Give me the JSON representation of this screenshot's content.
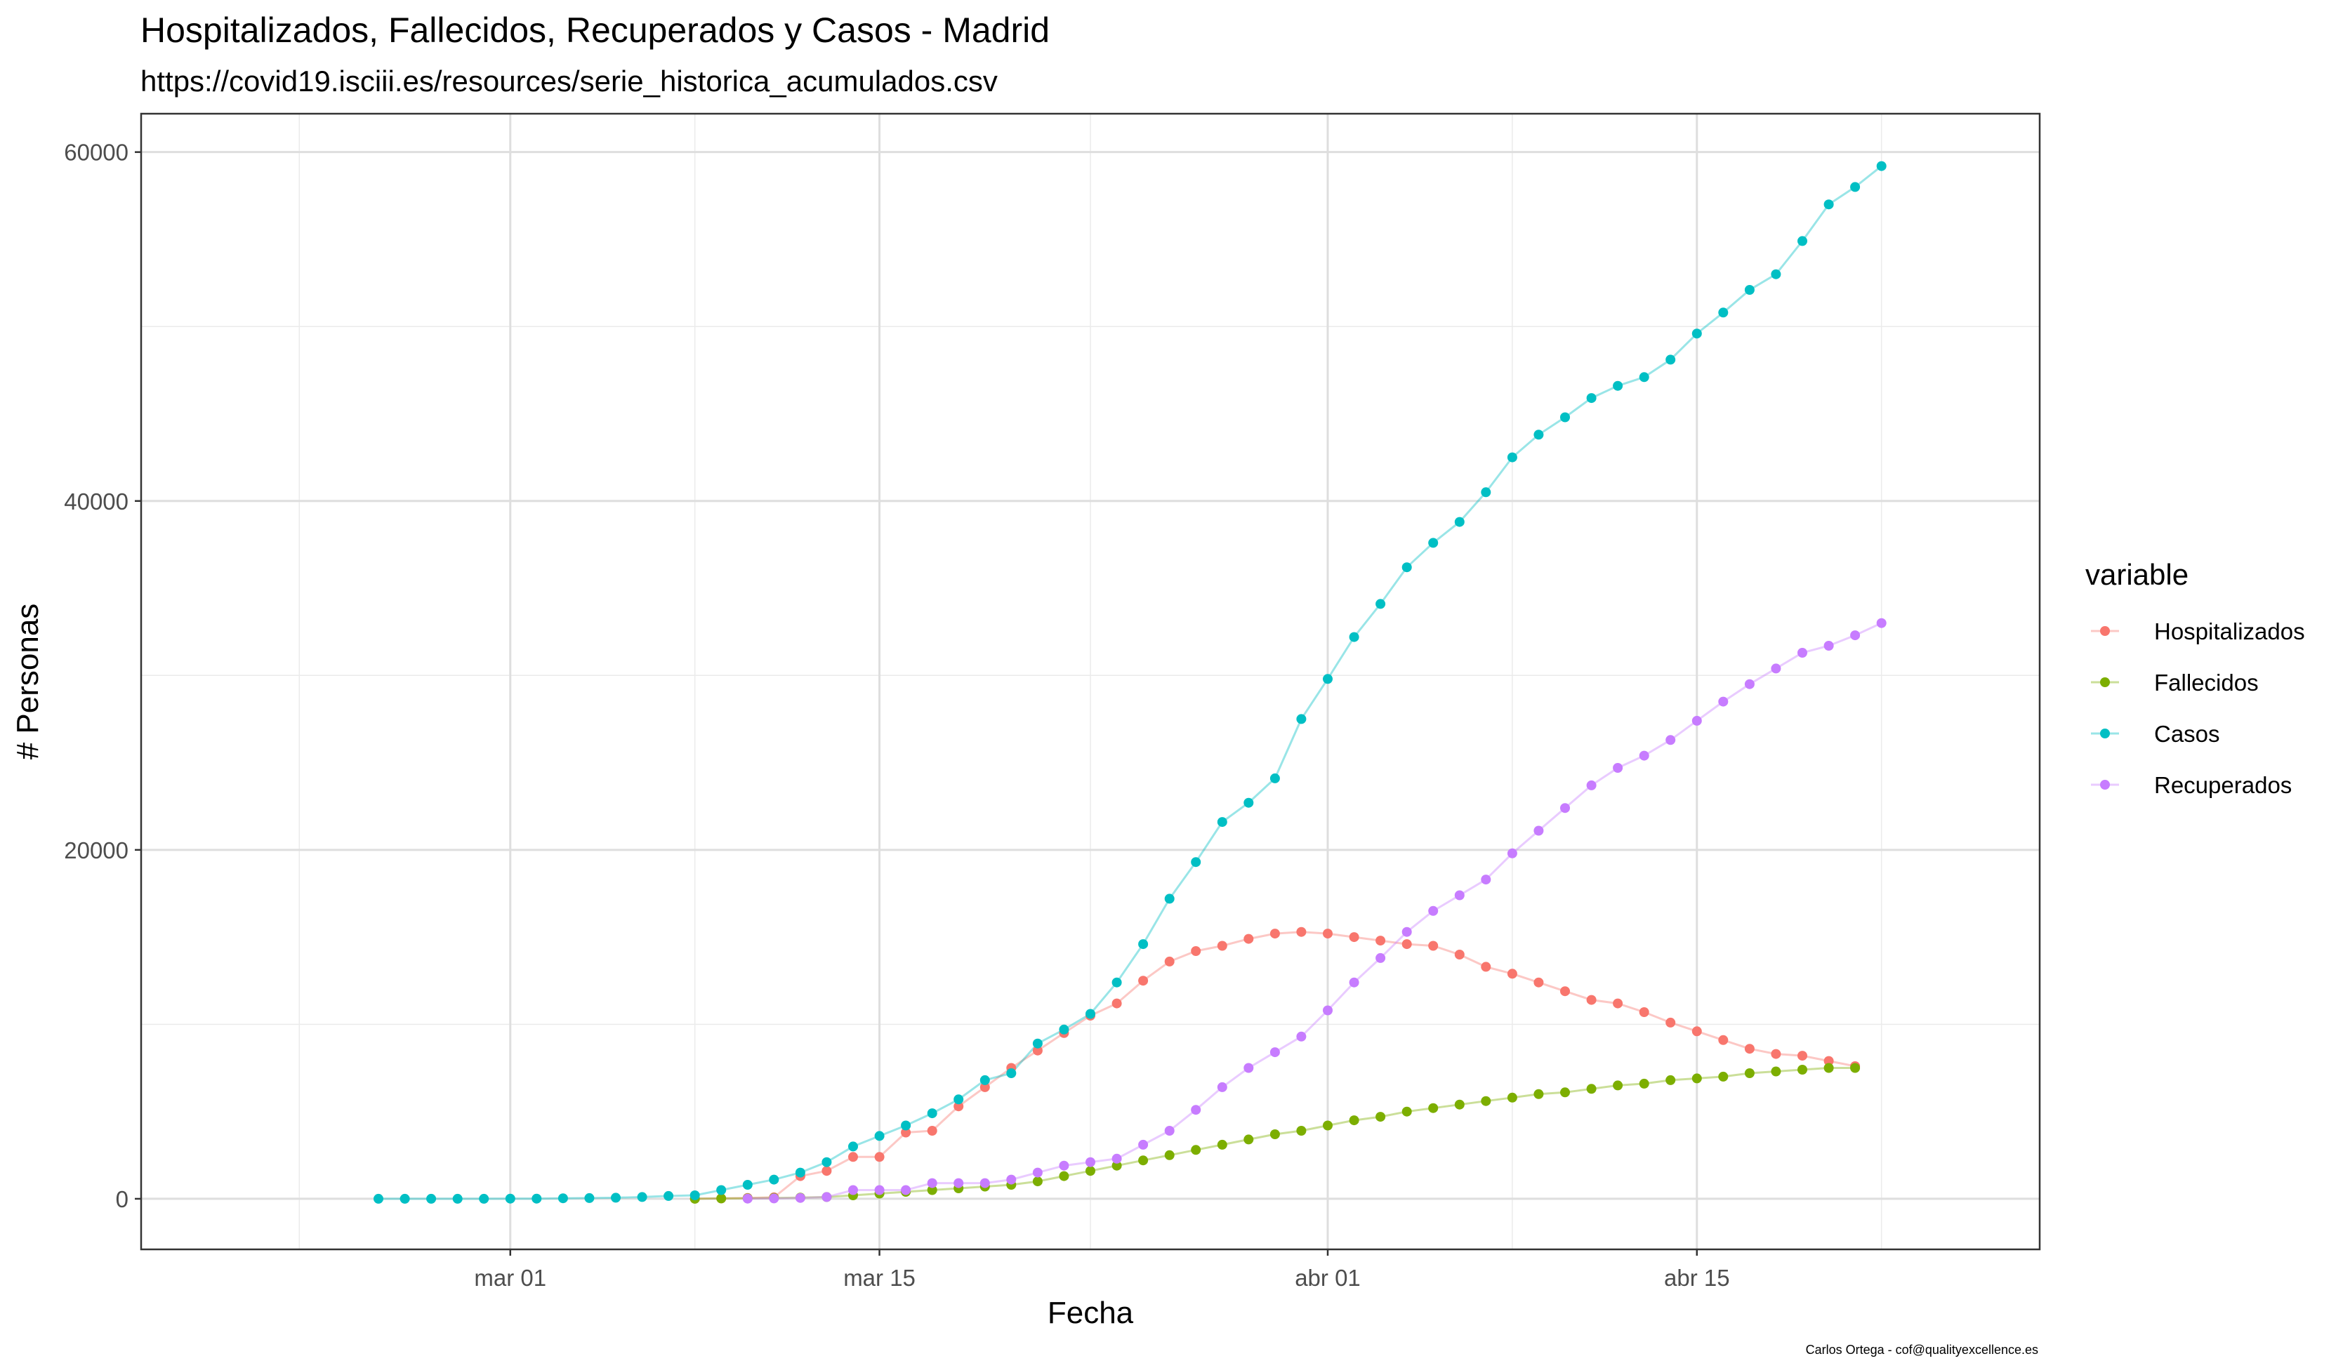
{
  "chart_data": {
    "type": "line",
    "title": "Hospitalizados, Fallecidos, Recuperados y Casos - Madrid",
    "subtitle": "https://covid19.isciii.es/resources/serie_historica_acumulados.csv",
    "caption": "Carlos Ortega - cof@qualityexcellence.es",
    "xlabel": "Fecha",
    "ylabel": "# Personas",
    "x_type": "date",
    "x_range": [
      "2020-02-16",
      "2020-04-28"
    ],
    "ylim": [
      -2900,
      62200
    ],
    "x_ticks": [
      {
        "date": "2020-03-01",
        "label": "mar 01"
      },
      {
        "date": "2020-03-15",
        "label": "mar 15"
      },
      {
        "date": "2020-04-01",
        "label": "abr 01"
      },
      {
        "date": "2020-04-15",
        "label": "abr 15"
      }
    ],
    "x_minor_ticks": [
      "2020-02-22",
      "2020-03-08",
      "2020-03-23",
      "2020-04-08",
      "2020-04-22"
    ],
    "y_ticks": [
      0,
      20000,
      40000,
      60000
    ],
    "y_minor_ticks": [
      10000,
      30000,
      50000
    ],
    "grid": true,
    "legend": {
      "title": "variable",
      "placement": "right"
    },
    "series": [
      {
        "name": "Hospitalizados",
        "color": "#F8766D",
        "start": "2020-03-08",
        "values": [
          10,
          20,
          50,
          80,
          1300,
          1600,
          2400,
          2400,
          3800,
          3900,
          5300,
          6400,
          7500,
          8500,
          9500,
          10500,
          11200,
          12500,
          13600,
          14200,
          14500,
          14900,
          15200,
          15300,
          15200,
          15000,
          14800,
          14600,
          14500,
          14000,
          13300,
          12900,
          12400,
          11900,
          11400,
          11200,
          10700,
          10100,
          9600,
          9100,
          8600,
          8300,
          8200,
          7900,
          7600
        ]
      },
      {
        "name": "Fallecidos",
        "color": "#7CAE00",
        "start": "2020-03-08",
        "values": [
          0,
          20,
          30,
          50,
          70,
          100,
          200,
          300,
          400,
          500,
          600,
          700,
          800,
          1000,
          1300,
          1600,
          1900,
          2200,
          2500,
          2800,
          3100,
          3400,
          3700,
          3900,
          4200,
          4500,
          4700,
          5000,
          5200,
          5400,
          5600,
          5800,
          6000,
          6100,
          6300,
          6500,
          6600,
          6800,
          6900,
          7000,
          7200,
          7300,
          7400,
          7500,
          7500
        ]
      },
      {
        "name": "Casos",
        "color": "#00BFC4",
        "start": "2020-02-25",
        "values": [
          0,
          0,
          0,
          0,
          0,
          10,
          10,
          30,
          40,
          60,
          100,
          160,
          200,
          500,
          800,
          1100,
          1500,
          2100,
          3000,
          3600,
          4200,
          4900,
          5700,
          6800,
          7200,
          8900,
          9700,
          10600,
          12400,
          14600,
          17200,
          19300,
          21600,
          22700,
          24100,
          27500,
          29800,
          32200,
          34100,
          36200,
          37600,
          38800,
          40500,
          42500,
          43800,
          44800,
          45900,
          46600,
          47100,
          48100,
          49600,
          50800,
          52100,
          53000,
          54900,
          57000,
          58000,
          59200
        ]
      },
      {
        "name": "Recuperados",
        "color": "#C77CFF",
        "start": "2020-03-10",
        "values": [
          10,
          20,
          50,
          100,
          500,
          500,
          500,
          900,
          900,
          900,
          1100,
          1500,
          1900,
          2100,
          2300,
          3100,
          3900,
          5100,
          6400,
          7500,
          8400,
          9300,
          10800,
          12400,
          13800,
          15300,
          16500,
          17400,
          18300,
          19800,
          21100,
          22400,
          23700,
          24700,
          25400,
          26300,
          27400,
          28500,
          29500,
          30400,
          31300,
          31700,
          32300,
          33000
        ]
      }
    ]
  }
}
